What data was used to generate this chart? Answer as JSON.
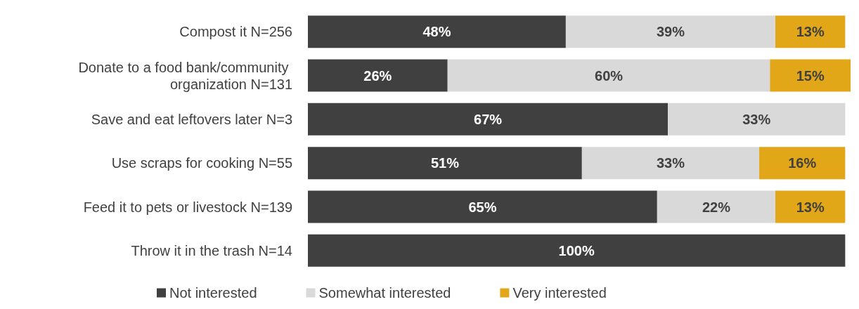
{
  "chart_data": {
    "type": "bar",
    "orientation": "horizontal",
    "stacked": true,
    "categories": [
      "Compost it N=256",
      "Donate to a food bank/community organization N=131",
      "Save and eat leftovers later N=3",
      "Use scraps for cooking N=55",
      "Feed it to pets or livestock N=139",
      "Throw it in the trash N=14"
    ],
    "series": [
      {
        "name": "Not interested",
        "color": "#404040",
        "values": [
          48,
          26,
          67,
          51,
          65,
          100
        ],
        "value_labels": [
          "48%",
          "26%",
          "67%",
          "51%",
          "65%",
          "100%"
        ]
      },
      {
        "name": "Somewhat interested",
        "color": "#d9d9d9",
        "values": [
          39,
          60,
          33,
          33,
          22,
          null
        ],
        "value_labels": [
          "39%",
          "60%",
          "33%",
          "33%",
          "22%",
          null
        ]
      },
      {
        "name": "Very interested",
        "color": "#e2a619",
        "values": [
          13,
          15,
          null,
          16,
          13,
          null
        ],
        "value_labels": [
          "13%",
          "15%",
          null,
          "16%",
          "13%",
          null
        ]
      }
    ],
    "xlim": [
      0,
      101
    ],
    "tick_labels": "y",
    "legend": "bottom",
    "grid": false
  }
}
